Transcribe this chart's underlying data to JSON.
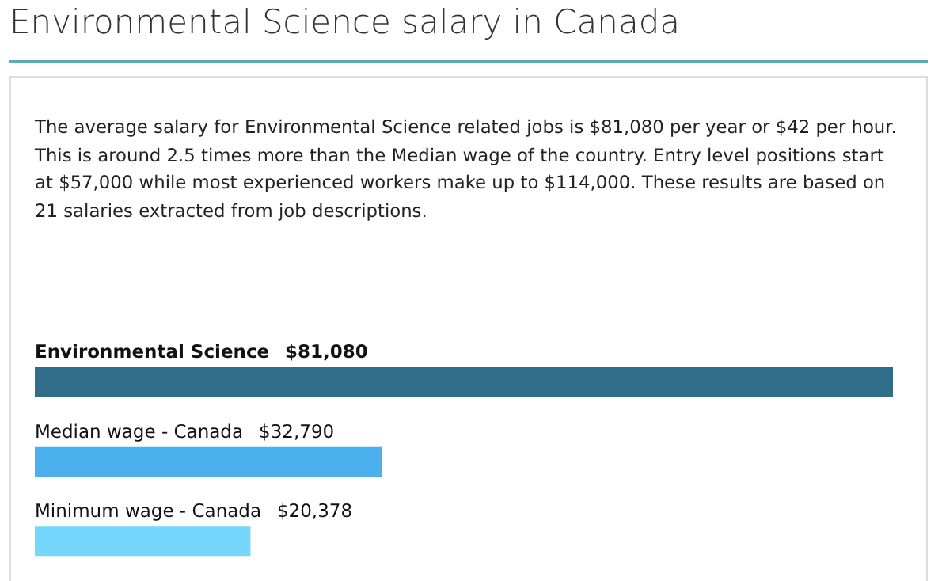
{
  "chart_data": {
    "type": "bar",
    "orientation": "horizontal",
    "title": "Environmental Science salary in Canada",
    "subtitle": "The average salary for Environmental Science related jobs is $81,080 per year or $42 per hour. This is around 2.5 times more than the Median wage of the country. Entry level positions start at $57,000 while most experienced workers make up to $114,000. These results are based on 21 salaries extracted from job descriptions.",
    "categories": [
      "Environmental Science",
      "Median wage - Canada",
      "Minimum wage - Canada"
    ],
    "values": [
      81080,
      32790,
      20378
    ],
    "colors": [
      "#2f6d8a",
      "#4ab0ee",
      "#74d7fb"
    ],
    "value_labels": [
      "$81,080",
      "$32,790",
      "$20,378"
    ],
    "grid": false,
    "legend": false
  }
}
